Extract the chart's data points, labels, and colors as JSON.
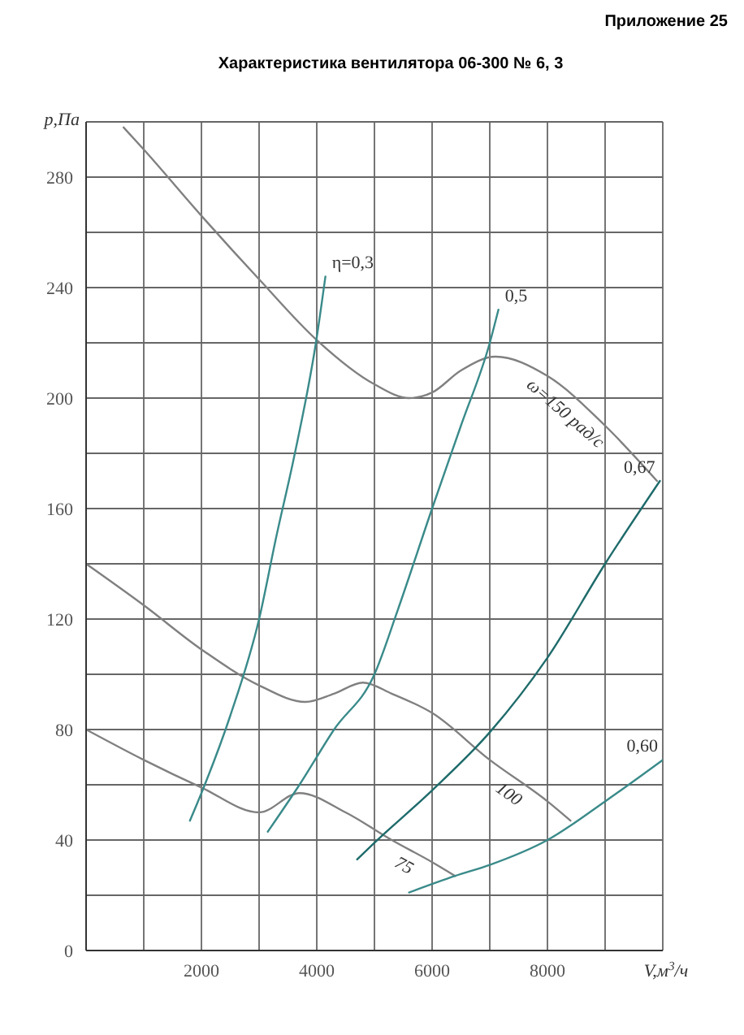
{
  "chart_data": {
    "type": "line",
    "title": "Характеристика вентилятора 06-300 № 6, 3",
    "annotations": [
      "Приложение 25"
    ],
    "xlabel": "V,м$^{3}$/ч",
    "ylabel": "p,Па",
    "xlim": [
      0,
      10000
    ],
    "ylim": [
      0,
      300
    ],
    "xticks": [
      {
        "value": 0,
        "label": null
      },
      {
        "value": 1000,
        "label": null
      },
      2000,
      {
        "value": 3000,
        "label": null
      },
      4000,
      {
        "value": 5000,
        "label": null
      },
      6000,
      {
        "value": 7000,
        "label": null
      },
      8000,
      {
        "value": 9000,
        "label": null
      },
      {
        "value": 10000,
        "label": null
      }
    ],
    "yticks": [
      0,
      {
        "value": 20,
        "label": null
      },
      40,
      {
        "value": 60,
        "label": null
      },
      80,
      {
        "value": 100,
        "label": null
      },
      120,
      {
        "value": 140,
        "label": null
      },
      160,
      {
        "value": 180,
        "label": null
      },
      200,
      {
        "value": 220,
        "label": null
      },
      240,
      {
        "value": 260,
        "label": null
      },
      280,
      {
        "value": 300,
        "label": null
      }
    ],
    "grid": true,
    "series": [
      {
        "name": "ω=150 рад/с",
        "color": "#808080",
        "x": [
          650,
          1000,
          2000,
          3000,
          4000,
          5000,
          5600,
          6000,
          6500,
          7100,
          8000,
          9000,
          9900
        ],
        "values": [
          298,
          290,
          266,
          243,
          221,
          205,
          200,
          202,
          210,
          215,
          208,
          190,
          170
        ]
      },
      {
        "name": "100",
        "color": "#808080",
        "x": [
          0,
          1000,
          2000,
          3000,
          3800,
          4300,
          4800,
          5300,
          6000,
          7000,
          8000,
          8400
        ],
        "values": [
          140,
          125,
          109,
          96,
          90,
          93,
          97,
          93,
          86,
          69,
          54,
          47
        ]
      },
      {
        "name": "75",
        "color": "#808080",
        "x": [
          0,
          1000,
          2000,
          3000,
          3700,
          4500,
          5300,
          6000,
          6400
        ],
        "values": [
          80,
          69,
          59,
          50,
          57,
          50,
          40,
          32,
          27
        ]
      },
      {
        "name": "η=0,3",
        "color": "#3a8a8a",
        "x": [
          1800,
          2000,
          2500,
          3000,
          3300,
          3600,
          4000,
          4150
        ],
        "values": [
          47,
          57,
          85,
          120,
          150,
          178,
          222,
          244
        ]
      },
      {
        "name": "0,5",
        "color": "#3a8a8a",
        "x": [
          3150,
          3700,
          4300,
          5000,
          5400,
          6000,
          6500,
          7000,
          7150
        ],
        "values": [
          43,
          60,
          80,
          100,
          123,
          160,
          190,
          220,
          232
        ]
      },
      {
        "name": "0,67",
        "color": "#1f6b6b",
        "x": [
          4700,
          5000,
          6000,
          7000,
          8000,
          9000,
          9950
        ],
        "values": [
          33,
          39,
          58,
          79,
          106,
          140,
          170
        ]
      },
      {
        "name": "0,60",
        "color": "#3a8a8a",
        "x": [
          5600,
          6400,
          7000,
          8000,
          9000,
          10000
        ],
        "values": [
          21,
          27,
          31,
          40,
          54,
          69
        ]
      }
    ]
  }
}
